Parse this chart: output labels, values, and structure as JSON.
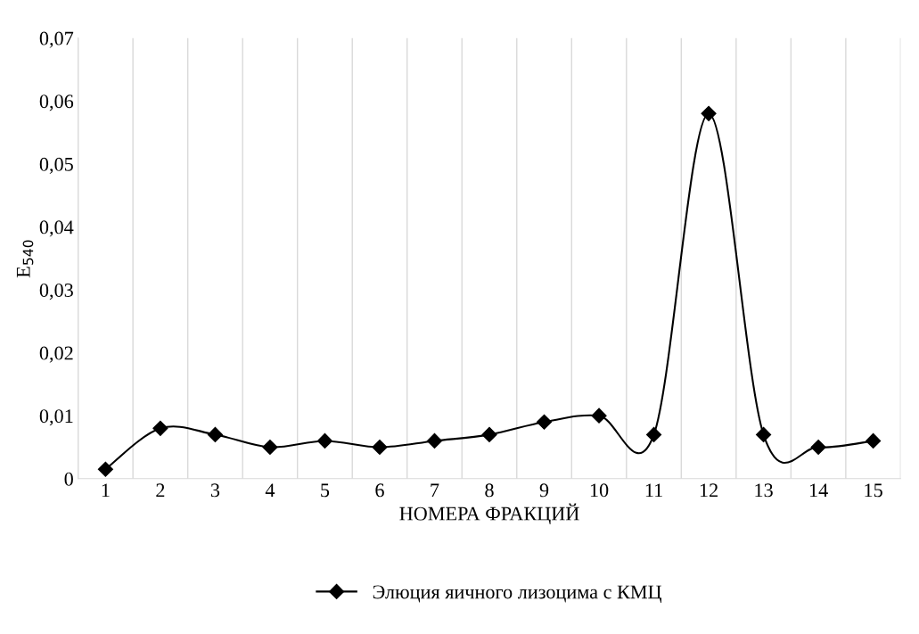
{
  "chart_data": {
    "type": "line",
    "xlabel": "НОМЕРА ФРАКЦИЙ",
    "ylabel": "E$_{540}$",
    "categories": [
      "1",
      "2",
      "3",
      "4",
      "5",
      "6",
      "7",
      "8",
      "9",
      "10",
      "11",
      "12",
      "13",
      "14",
      "15"
    ],
    "series": [
      {
        "name": "Элюция яичного лизоцима с КМЦ",
        "color": "#000000",
        "values": [
          0.0015,
          0.008,
          0.007,
          0.005,
          0.006,
          0.005,
          0.006,
          0.007,
          0.009,
          0.01,
          0.007,
          0.058,
          0.007,
          0.005,
          0.006
        ]
      }
    ],
    "ylim": [
      0,
      0.07
    ],
    "yticks": [
      0,
      {
        "value": 0.01,
        "label": "0,01"
      },
      {
        "value": 0.02,
        "label": "0,02"
      },
      {
        "value": 0.03,
        "label": "0,03"
      },
      {
        "value": 0.04,
        "label": "0,04"
      },
      {
        "value": 0.05,
        "label": "0,05"
      },
      {
        "value": 0.06,
        "label": "0,06"
      },
      {
        "value": 0.07,
        "label": "0,07"
      }
    ],
    "grid": "x",
    "legend": "bottom",
    "marker": "diamond",
    "line_style": "solid"
  }
}
